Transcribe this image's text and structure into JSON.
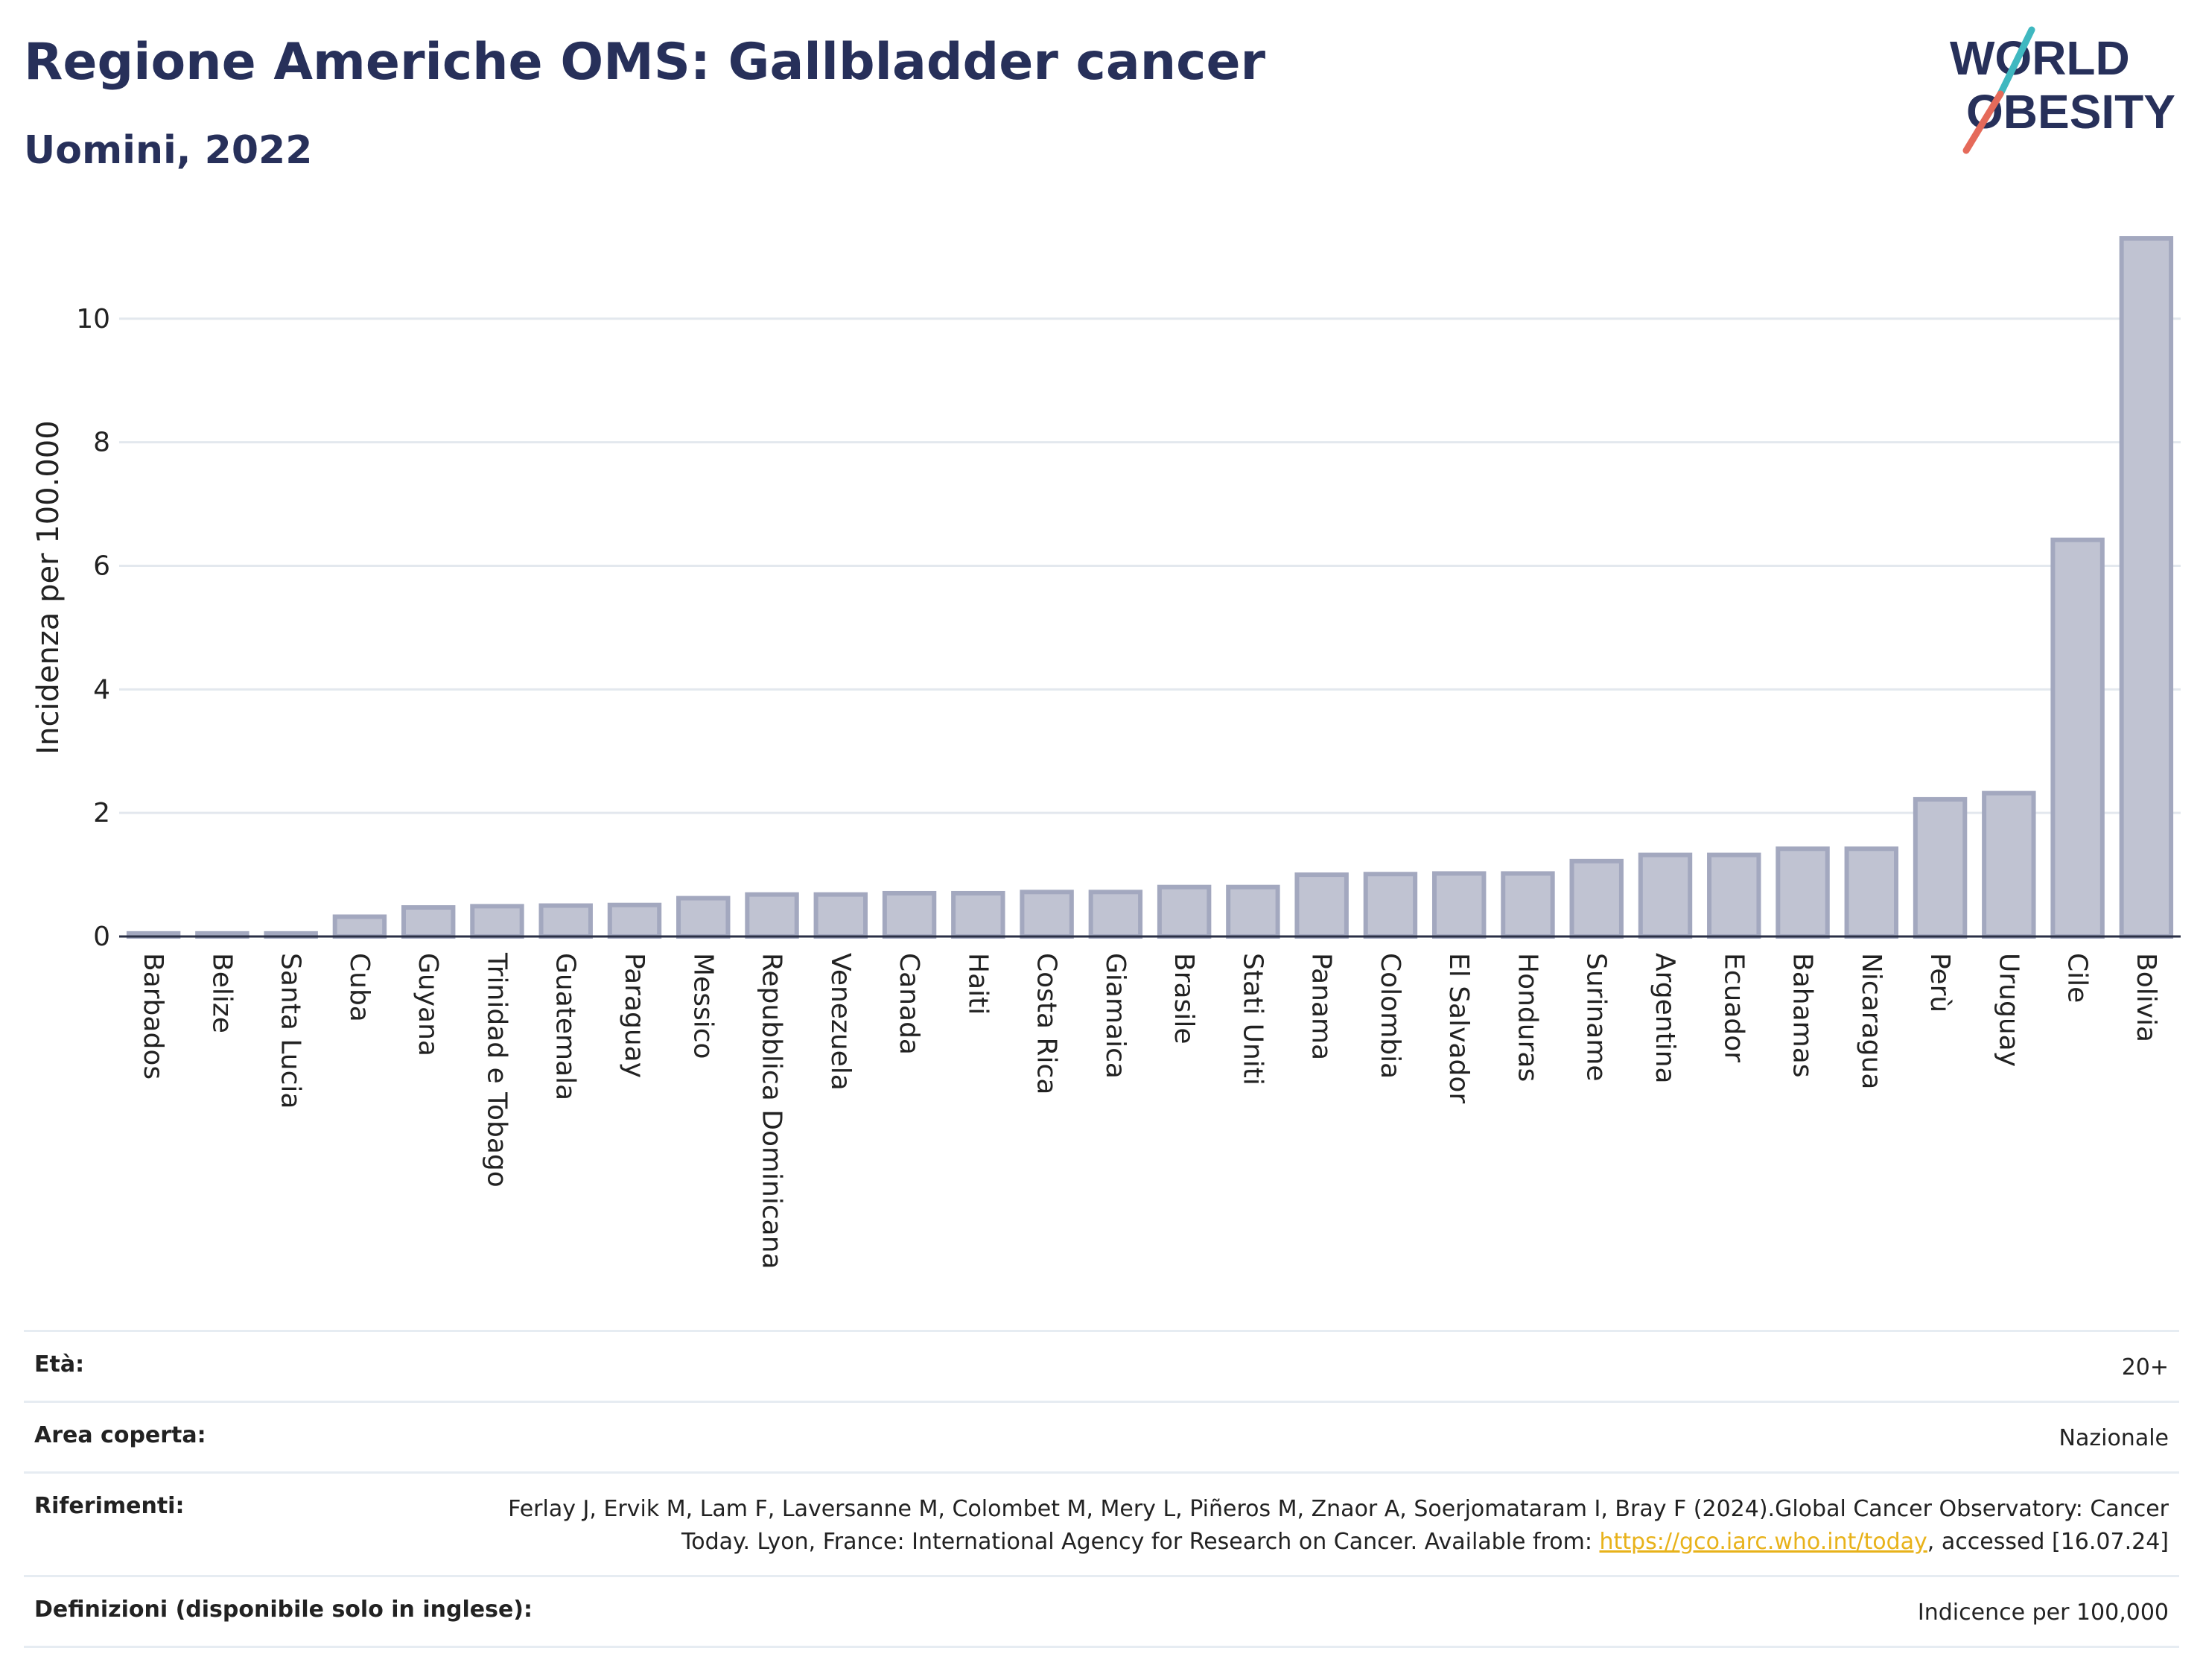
{
  "header": {
    "title": "Regione Americhe OMS: Gallbladder cancer",
    "subtitle": "Uomini, 2022",
    "logo_line1": "WORLD",
    "logo_line2": "OBESITY"
  },
  "chart_data": {
    "type": "bar",
    "title": "Regione Americhe OMS: Gallbladder cancer",
    "subtitle": "Uomini, 2022",
    "ylabel": "Incidenza per 100.000",
    "xlabel": "",
    "ylim": [
      0,
      11.3
    ],
    "yticks": [
      0,
      2,
      4,
      6,
      8,
      10
    ],
    "grid": true,
    "categories": [
      "Barbados",
      "Belize",
      "Santa Lucia",
      "Cuba",
      "Guyana",
      "Trinidad e Tobago",
      "Guatemala",
      "Paraguay",
      "Messico",
      "Repubblica Dominicana",
      "Venezuela",
      "Canada",
      "Haiti",
      "Costa Rica",
      "Giamaica",
      "Brasile",
      "Stati Uniti",
      "Panama",
      "Colombia",
      "El Salvador",
      "Honduras",
      "Suriname",
      "Argentina",
      "Ecuador",
      "Bahamas",
      "Nicaragua",
      "Perù",
      "Uruguay",
      "Cile",
      "Bolivia"
    ],
    "values": [
      0.05,
      0.05,
      0.05,
      0.32,
      0.47,
      0.49,
      0.5,
      0.51,
      0.62,
      0.68,
      0.68,
      0.7,
      0.7,
      0.72,
      0.72,
      0.8,
      0.8,
      1.0,
      1.01,
      1.02,
      1.02,
      1.22,
      1.32,
      1.32,
      1.42,
      1.42,
      2.22,
      2.32,
      6.42,
      11.3
    ],
    "bar_color": "#c0c3d2",
    "bar_edge_color": "#a3a8bf"
  },
  "meta": {
    "age_label": "Età:",
    "age_value": "20+",
    "area_label": "Area coperta:",
    "area_value": "Nazionale",
    "ref_label": "Riferimenti:",
    "ref_text1": "Ferlay J, Ervik M, Lam F, Laversanne M, Colombet M, Mery L, Piñeros M, Znaor A, Soerjomataram I, Bray F (2024).Global Cancer Observatory: Cancer Today. Lyon, France: International Agency for Research on Cancer. Available from: ",
    "ref_link": "https://gco.iarc.who.int/today",
    "ref_text2": ", accessed [16.07.24]",
    "def_label": "Definizioni (disponibile solo in inglese):",
    "def_value": "Indicence per 100,000"
  },
  "colors": {
    "title": "#27305a",
    "accent_teal": "#3fb8c0",
    "accent_coral": "#e56a5a",
    "link": "#e8b21a"
  }
}
